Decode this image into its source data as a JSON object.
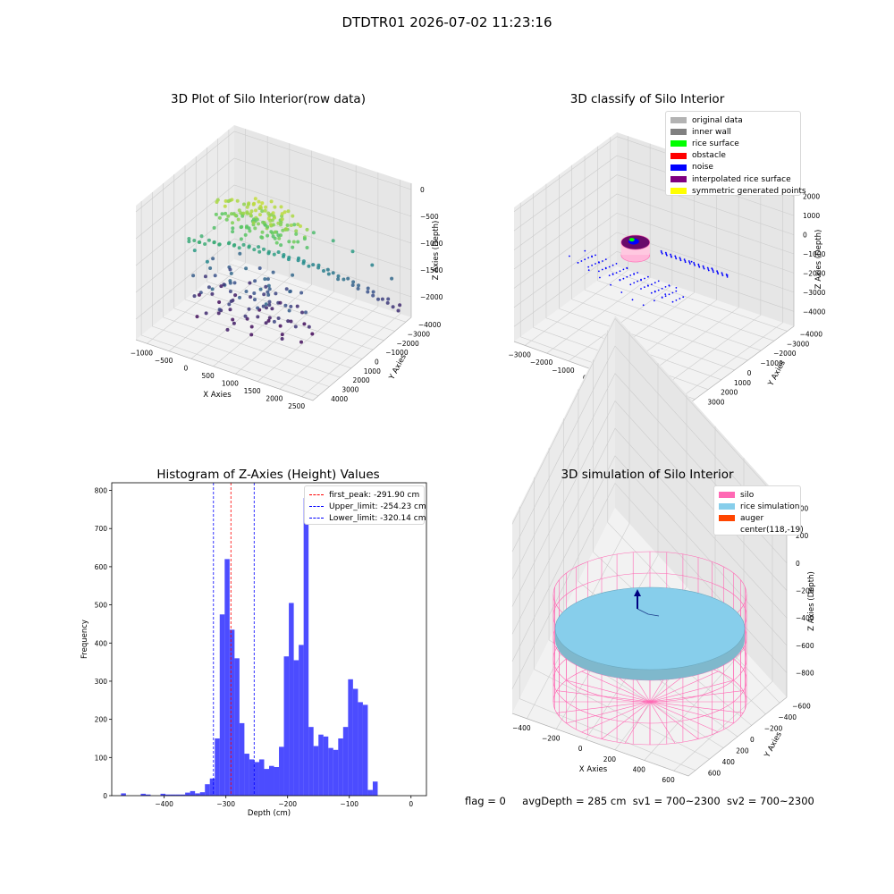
{
  "figure": {
    "suptitle": "DTDTR01 2026-07-02 11:23:16",
    "status": {
      "flag": "flag = 0",
      "avg_depth": "avgDepth = 285 cm",
      "sv1": "sv1 = 700~2300",
      "sv2": "sv2 = 700~2300"
    }
  },
  "chart_data": [
    {
      "type": "scatter",
      "title": "3D Plot of Silo Interior(row data)",
      "xlabel": "X Axies",
      "ylabel": "Y Axies",
      "zlabel": "Z Axies (Depth)",
      "x_ticks": [
        "−1000",
        "−500",
        "0",
        "500",
        "1000",
        "1500",
        "2000",
        "2500"
      ],
      "y_ticks": [
        "−4000",
        "−3000",
        "−2000",
        "−1000",
        "0",
        "1000",
        "2000",
        "3000",
        "4000"
      ],
      "z_ticks": [
        "0",
        "−500",
        "−1000",
        "−1500",
        "−2000"
      ],
      "xlim": [
        -1200,
        2700
      ],
      "ylim": [
        -4200,
        4200
      ],
      "zlim": [
        -2300,
        100
      ],
      "colormap": "viridis",
      "series": [
        {
          "points": [
            [
              300,
              -200,
              -120
            ],
            [
              400,
              -100,
              -130
            ],
            [
              500,
              0,
              -110
            ],
            [
              600,
              100,
              -140
            ],
            [
              350,
              150,
              -150
            ],
            [
              250,
              300,
              -200
            ],
            [
              700,
              -300,
              -180
            ],
            [
              800,
              -500,
              -350
            ],
            [
              100,
              400,
              -280
            ],
            [
              -100,
              700,
              -450
            ],
            [
              -300,
              1000,
              -600
            ],
            [
              -500,
              1300,
              -750
            ],
            [
              -700,
              1600,
              -850
            ],
            [
              1000,
              -800,
              -500
            ],
            [
              1300,
              -1300,
              -650
            ],
            [
              1600,
              -1800,
              -800
            ],
            [
              1900,
              -2300,
              -1000
            ],
            [
              2200,
              -2800,
              -1250
            ],
            [
              2500,
              -3300,
              -1500
            ],
            [
              2600,
              -3600,
              -2000
            ],
            [
              -600,
              1500,
              -1000
            ],
            [
              -400,
              1200,
              -1200
            ],
            [
              0,
              800,
              -1500
            ],
            [
              400,
              300,
              -1700
            ],
            [
              800,
              -200,
              -1850
            ],
            [
              1200,
              -700,
              -2000
            ],
            [
              -200,
              1000,
              -2100
            ],
            [
              300,
              500,
              -2150
            ],
            [
              900,
              0,
              -2200
            ],
            [
              1500,
              -400,
              -2250
            ]
          ]
        }
      ]
    },
    {
      "type": "scatter",
      "title": "3D classify of Silo Interior",
      "xlabel": "X Axies",
      "ylabel": "Y Axies",
      "zlabel": "Z Axies (Depth)",
      "x_ticks": [
        "−3000",
        "−2000",
        "−1000",
        "0",
        "1000",
        "2000",
        "3000",
        "4000"
      ],
      "y_ticks": [
        "−4000",
        "−3000",
        "−2000",
        "−1000",
        "0",
        "1000",
        "2000",
        "3000"
      ],
      "z_ticks": [
        "2000",
        "1000",
        "0",
        "−1000",
        "−2000",
        "−3000",
        "−4000"
      ],
      "xlim": [
        -3200,
        4400
      ],
      "ylim": [
        -4200,
        3600
      ],
      "zlim": [
        -4600,
        2200
      ],
      "legend": {
        "position": "upper right",
        "items": [
          {
            "label": "original data",
            "color": "#b3b3b3"
          },
          {
            "label": "inner wall",
            "color": "#808080"
          },
          {
            "label": "rice surface",
            "color": "#00ff00"
          },
          {
            "label": "obstacle",
            "color": "#ff0000"
          },
          {
            "label": "noise",
            "color": "#0000ff"
          },
          {
            "label": "interpolated rice surface",
            "color": "#800080"
          },
          {
            "label": "symmetric generated points",
            "color": "#ffff00"
          }
        ]
      },
      "series": [
        {
          "name": "noise",
          "points": [
            [
              -1800,
              1200,
              -1200
            ],
            [
              -1500,
              900,
              -1600
            ],
            [
              -1200,
              600,
              -2000
            ],
            [
              -900,
              300,
              -2400
            ],
            [
              -600,
              0,
              -2800
            ],
            [
              -300,
              -300,
              -3200
            ],
            [
              0,
              -600,
              -3500
            ],
            [
              300,
              -900,
              -3300
            ],
            [
              600,
              -1200,
              -3000
            ],
            [
              900,
              -1500,
              -2700
            ],
            [
              1500,
              -100,
              -200
            ],
            [
              2200,
              -400,
              -300
            ],
            [
              2900,
              -700,
              -500
            ],
            [
              3400,
              -1000,
              -800
            ],
            [
              -2000,
              1500,
              -800
            ]
          ]
        },
        {
          "name": "interpolated rice surface",
          "points": [
            [
              0,
              0,
              -200
            ],
            [
              150,
              100,
              -220
            ],
            [
              -150,
              -100,
              -210
            ],
            [
              100,
              -150,
              -230
            ],
            [
              -100,
              150,
              -215
            ]
          ]
        },
        {
          "name": "rice surface",
          "points": [
            [
              0,
              50,
              -150
            ],
            [
              50,
              -50,
              -160
            ]
          ]
        }
      ]
    },
    {
      "type": "bar",
      "title": "Histogram of Z-Axies (Height) Values",
      "xlabel": "Depth (cm)",
      "ylabel": "Frequency",
      "xlim": [
        -485,
        25
      ],
      "ylim": [
        0,
        820
      ],
      "x_ticks": [
        -400,
        -300,
        -200,
        -100,
        0
      ],
      "y_ticks": [
        0,
        100,
        200,
        300,
        400,
        500,
        600,
        700,
        800
      ],
      "bin_start": -470,
      "bin_width": 8,
      "color": "#0000ff",
      "values": [
        6,
        0,
        0,
        0,
        5,
        3,
        0,
        0,
        5,
        3,
        3,
        3,
        3,
        8,
        12,
        6,
        9,
        30,
        45,
        150,
        475,
        620,
        435,
        360,
        190,
        110,
        95,
        88,
        95,
        70,
        78,
        75,
        128,
        365,
        505,
        355,
        395,
        780,
        180,
        130,
        160,
        155,
        125,
        120,
        150,
        180,
        305,
        280,
        245,
        238,
        15,
        37
      ],
      "vlines": [
        {
          "label": "first_peak: -291.90 cm",
          "value": -291.9,
          "color": "#ff0000"
        },
        {
          "label": "Upper_limit: -254.23 cm",
          "value": -254.23,
          "color": "#0000ff"
        },
        {
          "label": "Lower_limit: -320.14 cm",
          "value": -320.14,
          "color": "#0000ff"
        }
      ]
    },
    {
      "type": "surface",
      "title": "3D simulation of Silo Interior",
      "xlabel": "X Axies",
      "ylabel": "Y Axies",
      "zlabel": "Z Axies (Depth)",
      "x_ticks": [
        "−400",
        "−200",
        "0",
        "200",
        "400",
        "600"
      ],
      "y_ticks": [
        "−600",
        "−400",
        "−200",
        "0",
        "200",
        "400",
        "600"
      ],
      "z_ticks": [
        "400",
        "200",
        "0",
        "−200",
        "−400",
        "−600",
        "−800"
      ],
      "legend": {
        "position": "upper right",
        "items": [
          {
            "label": "silo",
            "color": "#ff69b4"
          },
          {
            "label": "rice simulation",
            "color": "#87ceeb"
          },
          {
            "label": "auger",
            "color": "#ff4500"
          },
          {
            "label": "center(118,-19)",
            "color": ""
          }
        ]
      },
      "silo": {
        "center": [
          118,
          -19
        ],
        "radius": 550,
        "z_top": 0,
        "z_bottom": -900
      },
      "rice_surface_depth": -285
    }
  ]
}
